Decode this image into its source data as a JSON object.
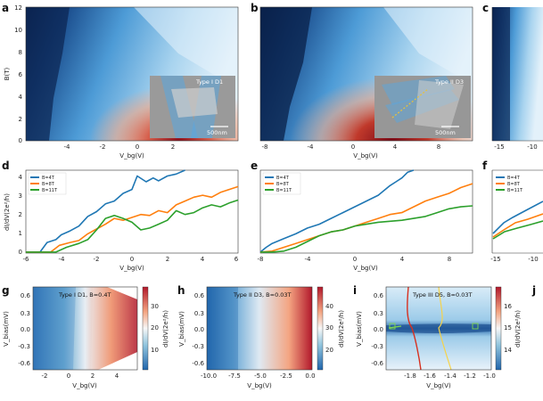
{
  "figure": {
    "panels": {
      "a": {
        "label": "a",
        "ylabel": "B(T)",
        "xlabel": "V_bg(V)",
        "xticks": [
          "-4",
          "-2",
          "0",
          "2"
        ],
        "yticks": [
          "0",
          "2",
          "4",
          "6",
          "8",
          "10",
          "12"
        ],
        "inset_title": "Type I D1",
        "scalebar": "500nm"
      },
      "b": {
        "label": "b",
        "xlabel": "V_bg(V)",
        "xticks": [
          "-8",
          "-4",
          "0",
          "4",
          "8"
        ],
        "inset_title": "Type II D3",
        "scalebar": "500nm"
      },
      "c": {
        "label": "c",
        "xticks": [
          "-15",
          "-10"
        ]
      },
      "d": {
        "label": "d",
        "ylabel": "dI/dV(2e²/h)",
        "xlabel": "V_bg(V)",
        "xticks": [
          "-6",
          "-4",
          "-2",
          "0",
          "2",
          "4",
          "6"
        ],
        "yticks": [
          "0",
          "1",
          "2",
          "3",
          "4"
        ]
      },
      "e": {
        "label": "e",
        "xlabel": "V_bg(V)",
        "xticks": [
          "-8",
          "-4",
          "0",
          "4",
          "8"
        ]
      },
      "f": {
        "label": "f",
        "xticks": [
          "-15",
          "-10"
        ]
      },
      "g": {
        "label": "g",
        "title": "Type I D1, B=0.4T",
        "ylabel": "V_bias(mV)",
        "xlabel": "V_bg(V)",
        "xticks": [
          "-2",
          "0",
          "2",
          "4"
        ],
        "yticks": [
          "0.6",
          "0.3",
          "0.0",
          "-0.3",
          "-0.6"
        ],
        "cbar_label": "dI/dV(2e²/h)",
        "cbar_ticks": [
          "30",
          "20",
          "10"
        ]
      },
      "h": {
        "label": "h",
        "title": "Type II D3, B=0.03T",
        "ylabel": "V_bias(mV)",
        "xlabel": "V_bg(V)",
        "xticks": [
          "-10.0",
          "-7.5",
          "-5.0",
          "-2.5",
          "0.0"
        ],
        "yticks": [
          "0.6",
          "0.3",
          "0.0",
          "-0.3",
          "-0.6"
        ],
        "cbar_label": "dI/dV(2e²/h)",
        "cbar_ticks": [
          "40",
          "30",
          "20"
        ]
      },
      "i": {
        "label": "i",
        "title": "Type III D5, B=0.03T",
        "ylabel": "V_bias(mV)",
        "xlabel": "V_bg(V)",
        "xticks": [
          "-1.8",
          "-1.6",
          "-1.4",
          "-1.2",
          "-1.0"
        ],
        "yticks": [
          "0.6",
          "0.3",
          "0.0",
          "-0.3",
          "-0.6"
        ],
        "cbar_label": "dI/dV(2e²/h)",
        "cbar_ticks": [
          "16",
          "15",
          "14"
        ]
      },
      "j": {
        "label": "j"
      }
    },
    "legend": [
      "B=4T",
      "B=8T",
      "B=11T"
    ],
    "colors": {
      "blue": "#1f77b4",
      "orange": "#ff7f0e",
      "green": "#2ca02c",
      "map_dark": "#0b2a5e",
      "map_mid": "#3d8fd1",
      "map_light": "#d9ecf8",
      "map_red": "#b2182b",
      "inset_gray": "#9c9c9c"
    }
  },
  "chart_data": [
    {
      "panel": "d",
      "type": "line",
      "xlabel": "V_bg(V)",
      "ylabel": "dI/dV(2e²/h)",
      "xlim": [
        -6,
        6
      ],
      "ylim": [
        0,
        4.3
      ],
      "series": [
        {
          "name": "B=4T",
          "x": [
            -6,
            -5.2,
            -4.8,
            -4.3,
            -4,
            -3.5,
            -3,
            -2.5,
            -2,
            -1.5,
            -1,
            -0.5,
            0,
            0.3,
            0.8,
            1.2,
            1.5,
            2,
            2.5,
            3
          ],
          "y": [
            0.05,
            0.05,
            0.55,
            0.7,
            0.95,
            1.15,
            1.4,
            1.9,
            2.15,
            2.55,
            2.7,
            3.1,
            3.3,
            4.0,
            3.7,
            3.9,
            3.75,
            4.0,
            4.1,
            4.3
          ]
        },
        {
          "name": "B=8T",
          "x": [
            -6,
            -4.6,
            -4.1,
            -3.5,
            -3,
            -2.5,
            -2,
            -1.5,
            -1,
            -0.5,
            0,
            0.5,
            1,
            1.5,
            2,
            2.5,
            3,
            3.5,
            4,
            4.5,
            5,
            5.5,
            6
          ],
          "y": [
            0.05,
            0.05,
            0.4,
            0.55,
            0.65,
            1.0,
            1.25,
            1.5,
            1.8,
            1.7,
            1.85,
            2.0,
            1.95,
            2.2,
            2.1,
            2.5,
            2.7,
            2.9,
            3.0,
            2.9,
            3.15,
            3.3,
            3.45
          ]
        },
        {
          "name": "B=11T",
          "x": [
            -6,
            -4.3,
            -3.7,
            -3,
            -2.5,
            -2,
            -1.5,
            -1,
            -0.5,
            0,
            0.5,
            1,
            1.5,
            2,
            2.5,
            3,
            3.5,
            4,
            4.5,
            5,
            5.5,
            6
          ],
          "y": [
            0.05,
            0.05,
            0.3,
            0.5,
            0.7,
            1.2,
            1.8,
            1.95,
            1.8,
            1.6,
            1.2,
            1.3,
            1.5,
            1.7,
            2.2,
            2.0,
            2.1,
            2.35,
            2.5,
            2.4,
            2.6,
            2.75
          ]
        }
      ]
    },
    {
      "panel": "e",
      "type": "line",
      "xlabel": "V_bg(V)",
      "ylabel": "dI/dV(2e²/h)",
      "xlim": [
        -8,
        10
      ],
      "ylim": [
        0,
        4.3
      ],
      "series": [
        {
          "name": "B=4T",
          "x": [
            -8,
            -7.5,
            -7,
            -6,
            -5,
            -4,
            -3,
            -2,
            -1,
            0,
            1,
            2,
            3,
            3.5,
            4,
            4.5,
            5
          ],
          "y": [
            0.05,
            0.3,
            0.5,
            0.75,
            1.0,
            1.3,
            1.5,
            1.8,
            2.1,
            2.4,
            2.7,
            3.0,
            3.5,
            3.7,
            3.9,
            4.2,
            4.3
          ]
        },
        {
          "name": "B=8T",
          "x": [
            -8,
            -7,
            -6,
            -5,
            -4,
            -3,
            -2,
            -1,
            0,
            1,
            2,
            3,
            4,
            5,
            6,
            7,
            8,
            9,
            10
          ],
          "y": [
            0.05,
            0.1,
            0.3,
            0.5,
            0.7,
            0.9,
            1.1,
            1.2,
            1.4,
            1.6,
            1.8,
            2.0,
            2.1,
            2.4,
            2.7,
            2.9,
            3.1,
            3.4,
            3.6
          ]
        },
        {
          "name": "B=11T",
          "x": [
            -8,
            -7,
            -6,
            -5,
            -4,
            -3,
            -2,
            -1,
            0,
            1,
            2,
            3,
            4,
            5,
            6,
            7,
            8,
            9,
            10
          ],
          "y": [
            0.05,
            0.05,
            0.1,
            0.3,
            0.6,
            0.9,
            1.1,
            1.2,
            1.4,
            1.5,
            1.6,
            1.65,
            1.7,
            1.8,
            1.9,
            2.1,
            2.3,
            2.4,
            2.45
          ]
        }
      ]
    }
  ]
}
